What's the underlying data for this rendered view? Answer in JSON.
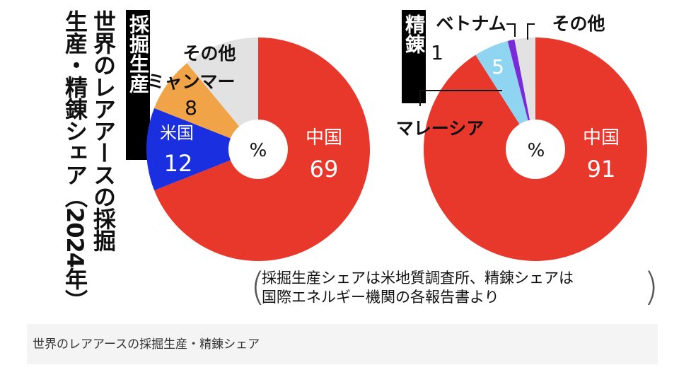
{
  "title_line1": "世界のレアアースの採掘",
  "title_line2": "生産・精錬シェア（2024年）",
  "caption": "世界のレアアースの採掘生産・精錬シェア",
  "note_line1": "採掘生産シェアは米地質調査所、精錬シェアは",
  "note_line2": "国際エネルギー機関の各報告書より",
  "colors": {
    "china": "#e8382c",
    "usa": "#1a2fe0",
    "myanmar": "#f0a347",
    "other": "#e2e2e2",
    "malaysia": "#8fd5f2",
    "vietnam": "#7a2bd9"
  },
  "chart_data": [
    {
      "type": "pie",
      "tab_label": "採掘生産",
      "center_label": "%",
      "slices": [
        {
          "name": "中国",
          "value": 69,
          "color": "#e8382c"
        },
        {
          "name": "米国",
          "value": 12,
          "color": "#1a2fe0"
        },
        {
          "name": "ミャンマー",
          "value": 8,
          "color": "#f0a347"
        },
        {
          "name": "その他",
          "value": 11,
          "color": "#e2e2e2"
        }
      ]
    },
    {
      "type": "pie",
      "tab_label": "精錬",
      "center_label": "%",
      "slices": [
        {
          "name": "中国",
          "value": 91,
          "color": "#e8382c"
        },
        {
          "name": "マレーシア",
          "value": 5,
          "color": "#8fd5f2"
        },
        {
          "name": "ベトナム",
          "value": 1,
          "color": "#7a2bd9"
        },
        {
          "name": "その他",
          "value": 3,
          "color": "#e2e2e2"
        }
      ]
    }
  ]
}
